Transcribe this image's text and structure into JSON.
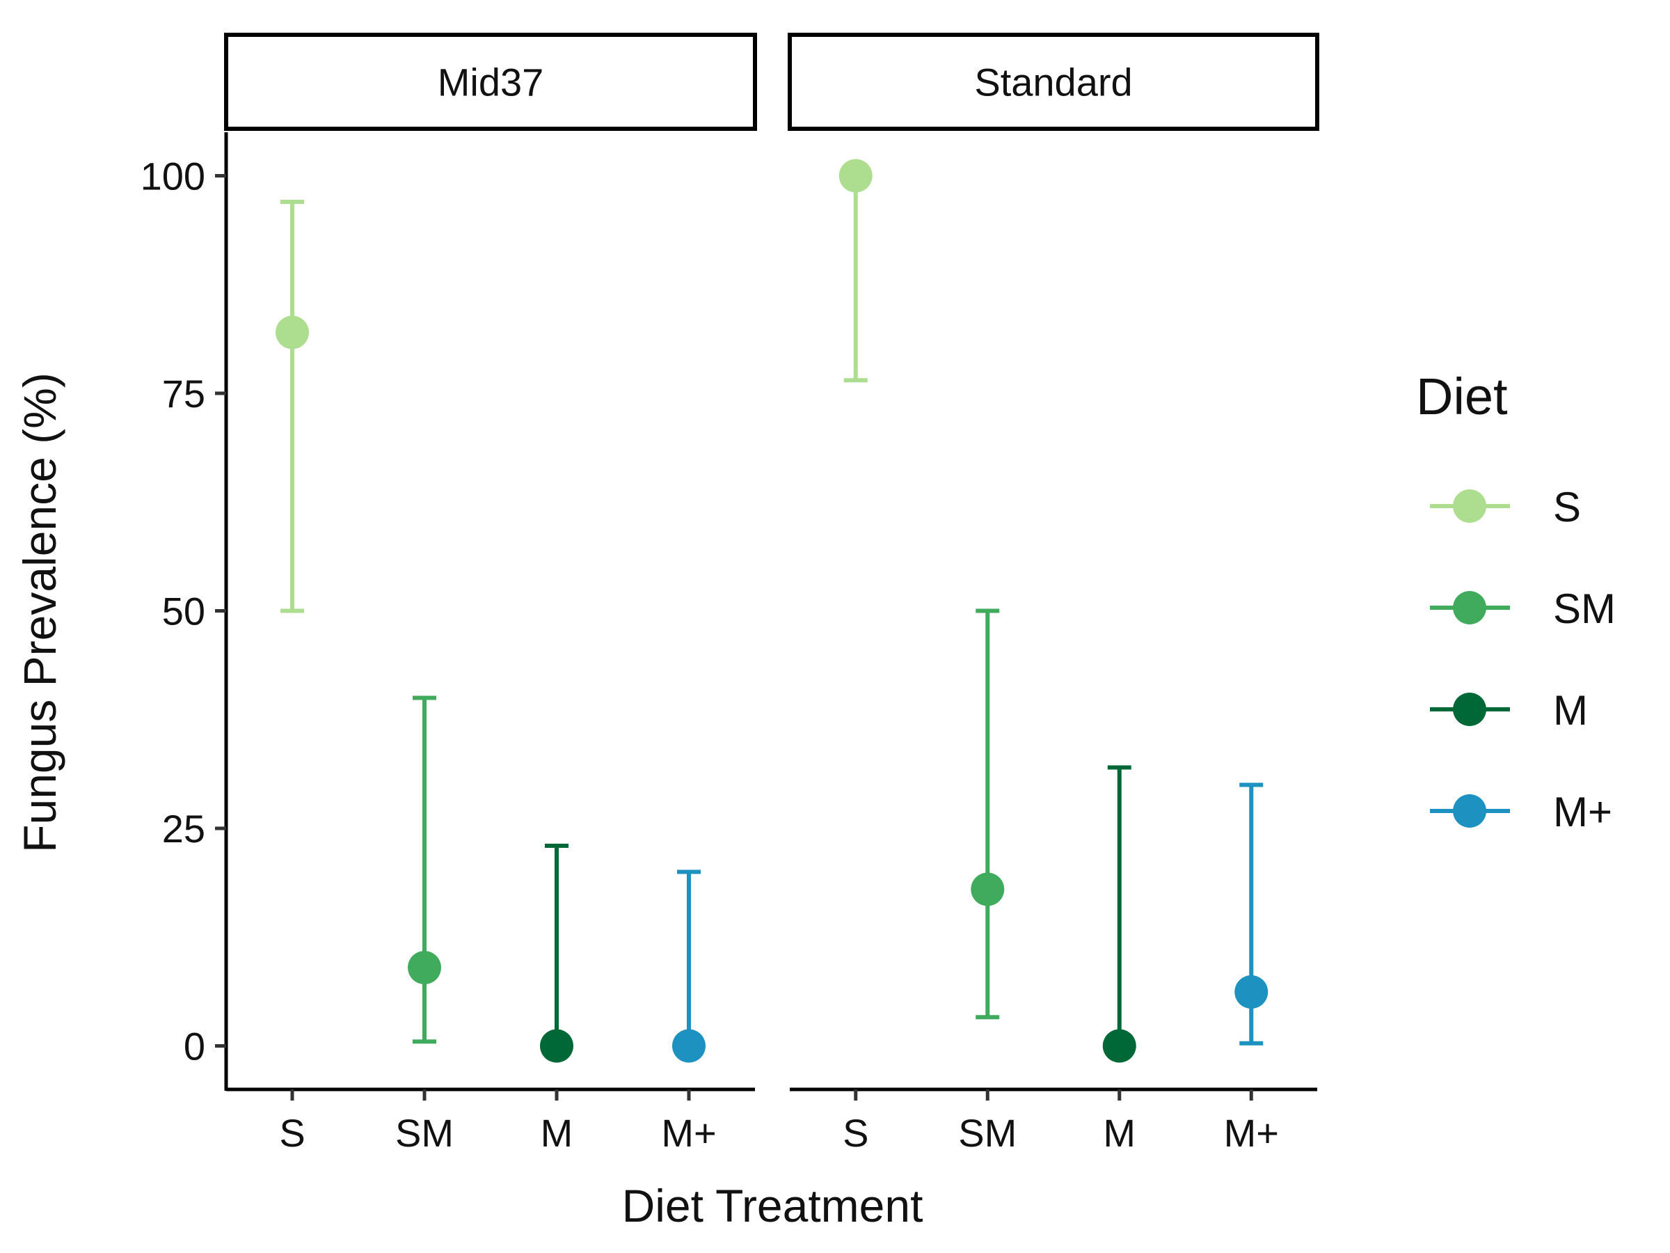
{
  "chart_data": {
    "type": "scatter",
    "subtype": "point-with-error-bars, faceted",
    "xlabel": "Diet Treatment",
    "ylabel": "Fungus Prevalence (%)",
    "ylim": [
      -5,
      105
    ],
    "yticks": [
      0,
      25,
      50,
      75,
      100
    ],
    "categories": [
      "S",
      "SM",
      "M",
      "M+"
    ],
    "grid": false,
    "legend": {
      "title": "Diet",
      "placement": "right",
      "items": [
        {
          "label": "S",
          "color": "#addd8e"
        },
        {
          "label": "SM",
          "color": "#41ab5d"
        },
        {
          "label": "M",
          "color": "#006837"
        },
        {
          "label": "M+",
          "color": "#1d91c0"
        }
      ]
    },
    "facets": [
      {
        "label": "Mid37",
        "points": [
          {
            "category": "S",
            "value": 82,
            "lower": 50,
            "upper": 97
          },
          {
            "category": "SM",
            "value": 9,
            "lower": 0.5,
            "upper": 40
          },
          {
            "category": "M",
            "value": 0,
            "lower": 0,
            "upper": 23
          },
          {
            "category": "M+",
            "value": 0,
            "lower": 0,
            "upper": 20
          }
        ]
      },
      {
        "label": "Standard",
        "points": [
          {
            "category": "S",
            "value": 100,
            "lower": 76.5,
            "upper": 100
          },
          {
            "category": "SM",
            "value": 18,
            "lower": 3.3,
            "upper": 50
          },
          {
            "category": "M",
            "value": 0,
            "lower": 0,
            "upper": 32
          },
          {
            "category": "M+",
            "value": 6.2,
            "lower": 0.3,
            "upper": 30
          }
        ]
      }
    ]
  }
}
